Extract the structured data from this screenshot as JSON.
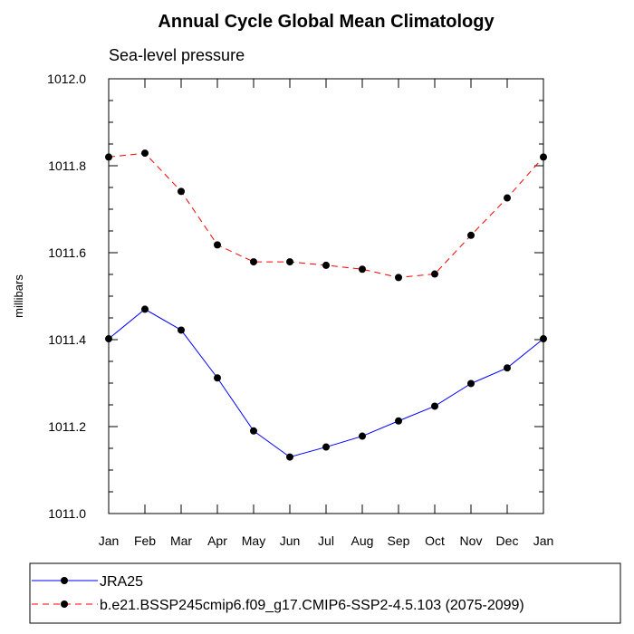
{
  "chart_data": {
    "type": "line",
    "title": "Annual Cycle Global Mean Climatology",
    "subtitle": "Sea-level pressure",
    "ylabel": "millibars",
    "xlabel": "",
    "ylim": [
      1011.0,
      1012.0
    ],
    "yticks": [
      "1011.0",
      "1011.2",
      "1011.4",
      "1011.6",
      "1011.8",
      "1012.0"
    ],
    "categories": [
      "Jan",
      "Feb",
      "Mar",
      "Apr",
      "May",
      "Jun",
      "Jul",
      "Aug",
      "Sep",
      "Oct",
      "Nov",
      "Dec",
      "Jan"
    ],
    "series": [
      {
        "name": "JRA25",
        "color": "#0000ff",
        "dash": "solid",
        "values": [
          1011.402,
          1011.47,
          1011.422,
          1011.312,
          1011.19,
          1011.13,
          1011.153,
          1011.178,
          1011.213,
          1011.247,
          1011.299,
          1011.335,
          1011.402
        ]
      },
      {
        "name": "b.e21.BSSP245cmip6.f09_g17.CMIP6-SSP2-4.5.103 (2075-2099)",
        "color": "#ff0000",
        "dash": "dashed",
        "values": [
          1011.82,
          1011.829,
          1011.741,
          1011.618,
          1011.579,
          1011.579,
          1011.571,
          1011.562,
          1011.543,
          1011.551,
          1011.64,
          1011.726,
          1011.82
        ]
      }
    ],
    "legend_position": "bottom"
  }
}
